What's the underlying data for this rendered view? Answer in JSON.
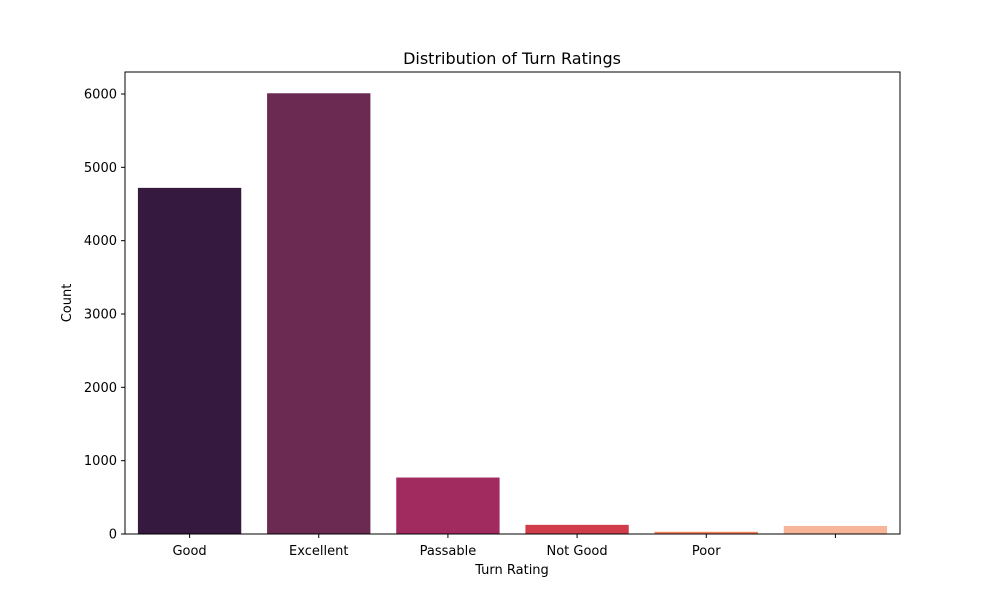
{
  "chart_data": {
    "type": "bar",
    "title": "Distribution of Turn Ratings",
    "xlabel": "Turn Rating",
    "ylabel": "Count",
    "categories": [
      "Good",
      "Excellent",
      "Passable",
      "Not Good",
      "Poor",
      ""
    ],
    "values": [
      4720,
      6010,
      770,
      125,
      30,
      110
    ],
    "colors": [
      "#35193e",
      "#6b2a52",
      "#a12a5e",
      "#d13c4a",
      "#f3825b",
      "#f7b59a"
    ],
    "ylim": [
      0,
      6300
    ],
    "yticks": [
      0,
      1000,
      2000,
      3000,
      4000,
      5000,
      6000
    ],
    "grid": false,
    "legend": "none"
  }
}
